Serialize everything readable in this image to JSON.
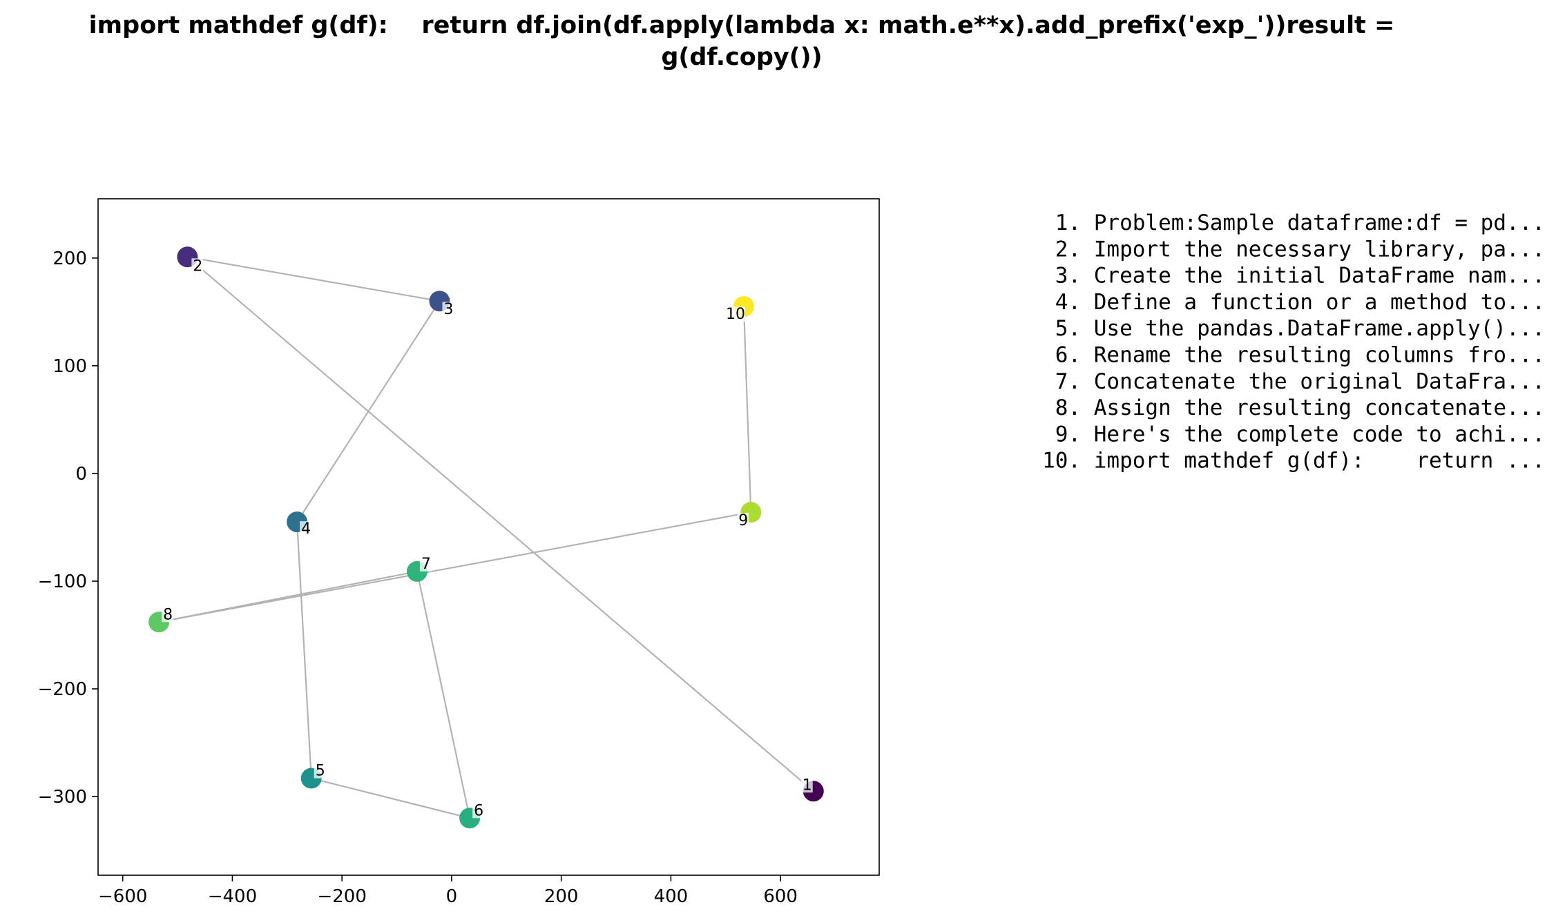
{
  "chart_data": {
    "type": "scatter",
    "title_lines": [
      "import mathdef g(df):    return df.join(df.apply(lambda x: math.e**x).add_prefix('exp_'))result =",
      "g(df.copy())"
    ],
    "xlabel": "",
    "ylabel": "",
    "xlim": [
      -645,
      780
    ],
    "ylim": [
      -373,
      255
    ],
    "xticks": [
      -600,
      -400,
      -200,
      0,
      200,
      400,
      600
    ],
    "yticks": [
      -300,
      -200,
      -100,
      0,
      100,
      200
    ],
    "xtick_labels": [
      "−600",
      "−400",
      "−200",
      "0",
      "200",
      "400",
      "600"
    ],
    "ytick_labels": [
      "−300",
      "−200",
      "−100",
      "0",
      "100",
      "200"
    ],
    "grid": false,
    "line_color": "#b3b3b3",
    "colormap": "viridis",
    "points": [
      {
        "label": "1",
        "x": 660,
        "y": -295,
        "color": "#440154"
      },
      {
        "label": "2",
        "x": -482,
        "y": 201,
        "color": "#472d7b"
      },
      {
        "label": "3",
        "x": -22,
        "y": 160,
        "color": "#3b528b"
      },
      {
        "label": "4",
        "x": -282,
        "y": -45,
        "color": "#2c728e"
      },
      {
        "label": "5",
        "x": -256,
        "y": -283,
        "color": "#21918c"
      },
      {
        "label": "6",
        "x": 33,
        "y": -320,
        "color": "#28ae80"
      },
      {
        "label": "7",
        "x": -63,
        "y": -91,
        "color": "#2fb47c"
      },
      {
        "label": "8",
        "x": -534,
        "y": -138,
        "color": "#5ec962"
      },
      {
        "label": "9",
        "x": 546,
        "y": -36,
        "color": "#addc30"
      },
      {
        "label": "10",
        "x": 533,
        "y": 155,
        "color": "#fde725"
      }
    ],
    "steps": [
      "1. Problem:Sample dataframe:df = pd...",
      "2. Import the necessary library, pa...",
      "3. Create the initial DataFrame nam...",
      "4. Define a function or a method to...",
      "5. Use the pandas.DataFrame.apply()...",
      "6. Rename the resulting columns fro...",
      "7. Concatenate the original DataFra...",
      "8. Assign the resulting concatenate...",
      "9. Here's the complete code to achi...",
      "10. import mathdef g(df):    return ..."
    ]
  }
}
